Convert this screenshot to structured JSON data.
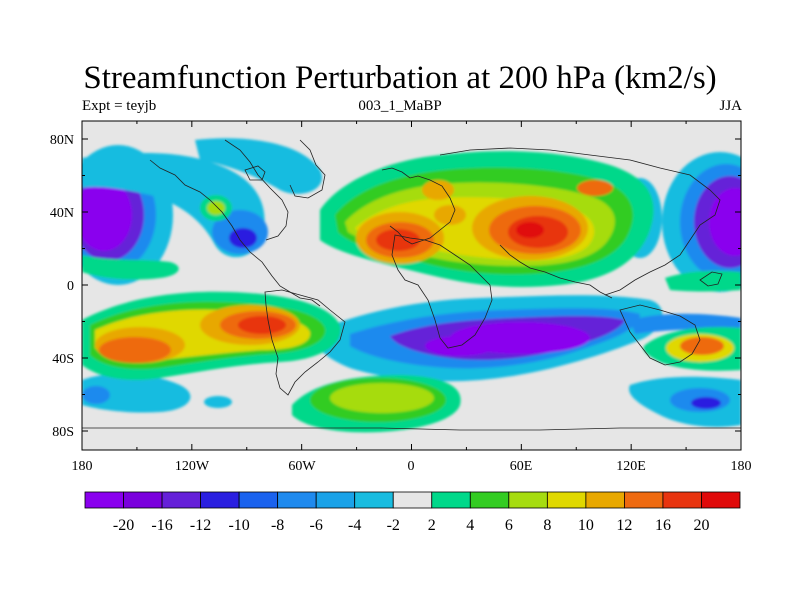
{
  "header": {
    "title": "Streamfunction Perturbation at 200 hPa (km2/s)",
    "left_label": "Expt = teyjb",
    "center_label": "003_1_MaBP",
    "right_label": "JJA"
  },
  "map": {
    "lon_ticks": [
      "180",
      "120W",
      "60W",
      "0",
      "60E",
      "120E",
      "180"
    ],
    "lat_ticks": [
      "80N",
      "40N",
      "0",
      "40S",
      "80S"
    ],
    "background_color": "#e6e6e6",
    "field_features": [
      {
        "name": "pacific-low-west",
        "lon": -168,
        "lat": 35,
        "value": -20
      },
      {
        "name": "pacific-low-east",
        "lon": 168,
        "lat": 35,
        "value": -20
      },
      {
        "name": "south-ocean-low",
        "lon": 70,
        "lat": -40,
        "value": -20
      },
      {
        "name": "asia-high",
        "lon": 72,
        "lat": 30,
        "value": 20
      },
      {
        "name": "africa-high",
        "lon": -12,
        "lat": 25,
        "value": 20
      },
      {
        "name": "s-pacific-high",
        "lon": -143,
        "lat": -35,
        "value": 16
      },
      {
        "name": "s-america-high",
        "lon": -85,
        "lat": -22,
        "value": 20
      },
      {
        "name": "aus-high",
        "lon": 160,
        "lat": -32,
        "value": 12
      }
    ]
  },
  "colorbar": {
    "labels": [
      "-20",
      "-16",
      "-12",
      "-10",
      "-8",
      "-6",
      "-4",
      "-2",
      "2",
      "4",
      "6",
      "8",
      "10",
      "12",
      "16",
      "20"
    ],
    "colors": [
      "#8a00ee",
      "#7a00dd",
      "#6520d8",
      "#2a1fe0",
      "#1a62ee",
      "#1f8aee",
      "#1aa2e8",
      "#19bce0",
      "#e6e6e6",
      "#00d88a",
      "#33cc22",
      "#a6dc10",
      "#e0d800",
      "#e8a800",
      "#ee6a10",
      "#e8340f",
      "#e00a0a"
    ]
  }
}
